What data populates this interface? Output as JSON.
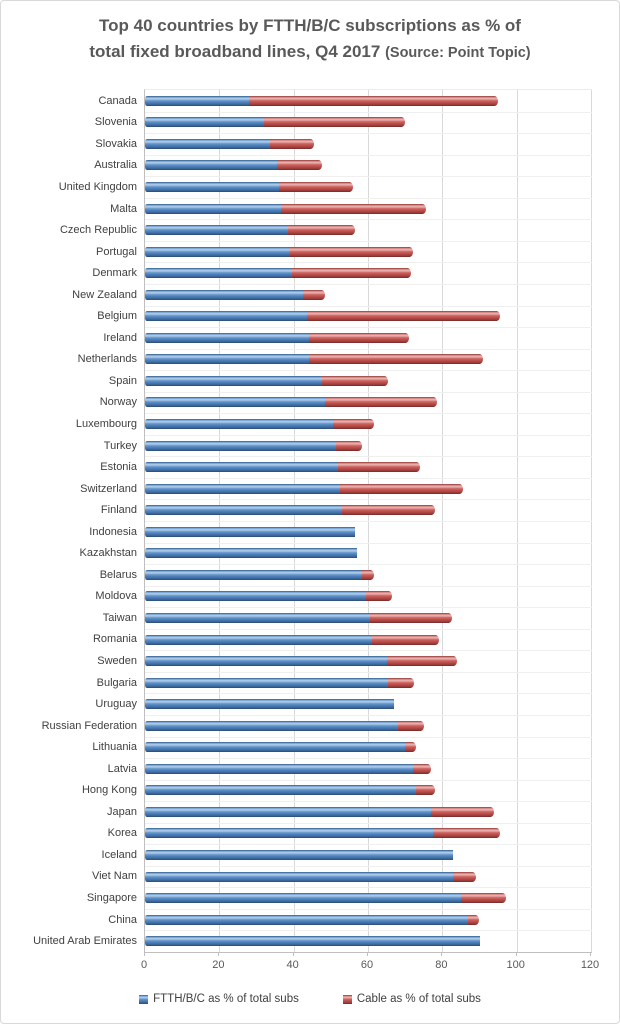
{
  "title": {
    "line1": "Top 40 countries by FTTH/B/C subscriptions as % of",
    "line2_main": "total fixed broadband lines, Q4 2017",
    "line2_source": "(Source: Point Topic)"
  },
  "colors": {
    "ftth_blue": "#4f81bd",
    "cable_red": "#c0504d",
    "gridline": "#d9d9d9",
    "axis_line": "#bfbfbf",
    "title_text": "#595959",
    "label_text": "#404040"
  },
  "chart_data": {
    "type": "bar",
    "orientation": "horizontal",
    "stacked": true,
    "grid": "vertical",
    "legend_position": "bottom",
    "xlim": [
      0,
      120
    ],
    "xticks": [
      0,
      20,
      40,
      60,
      80,
      100,
      120
    ],
    "categories": [
      "Canada",
      "Slovenia",
      "Slovakia",
      "Australia",
      "United Kingdom",
      "Malta",
      "Czech Republic",
      "Portugal",
      "Denmark",
      "New Zealand",
      "Belgium",
      "Ireland",
      "Netherlands",
      "Spain",
      "Norway",
      "Luxembourg",
      "Turkey",
      "Estonia",
      "Switzerland",
      "Finland",
      "Indonesia",
      "Kazakhstan",
      "Belarus",
      "Moldova",
      "Taiwan",
      "Romania",
      "Sweden",
      "Bulgaria",
      "Uruguay",
      "Russian Federation",
      "Lithuania",
      "Latvia",
      "Hong Kong",
      "Japan",
      "Korea",
      "Iceland",
      "Viet Nam",
      "Singapore",
      "China",
      "United Arab Emirates"
    ],
    "series": [
      {
        "name": "FTTH/B/C as % of total subs",
        "color": "#4f81bd",
        "values": [
          28,
          32,
          33.5,
          35.5,
          36,
          36.5,
          38.5,
          39,
          39.5,
          42.5,
          43.5,
          44,
          44,
          47.5,
          48.5,
          50.5,
          51.5,
          52,
          52.5,
          53,
          56.5,
          57,
          58.5,
          59.5,
          60.5,
          61,
          65,
          65.5,
          67,
          68,
          70,
          72,
          73,
          77,
          77.5,
          83,
          83,
          85,
          87,
          90
        ]
      },
      {
        "name": "Cable as % of total subs",
        "color": "#c0504d",
        "values": [
          67,
          38,
          12,
          12,
          20,
          39,
          18,
          33,
          32,
          6,
          52,
          27,
          47,
          18,
          30,
          11,
          7,
          22,
          33,
          25,
          0,
          0,
          3,
          7,
          22,
          18,
          19,
          7,
          0,
          7,
          3,
          5,
          5,
          17,
          18,
          0,
          6,
          12,
          3,
          0
        ]
      }
    ]
  }
}
